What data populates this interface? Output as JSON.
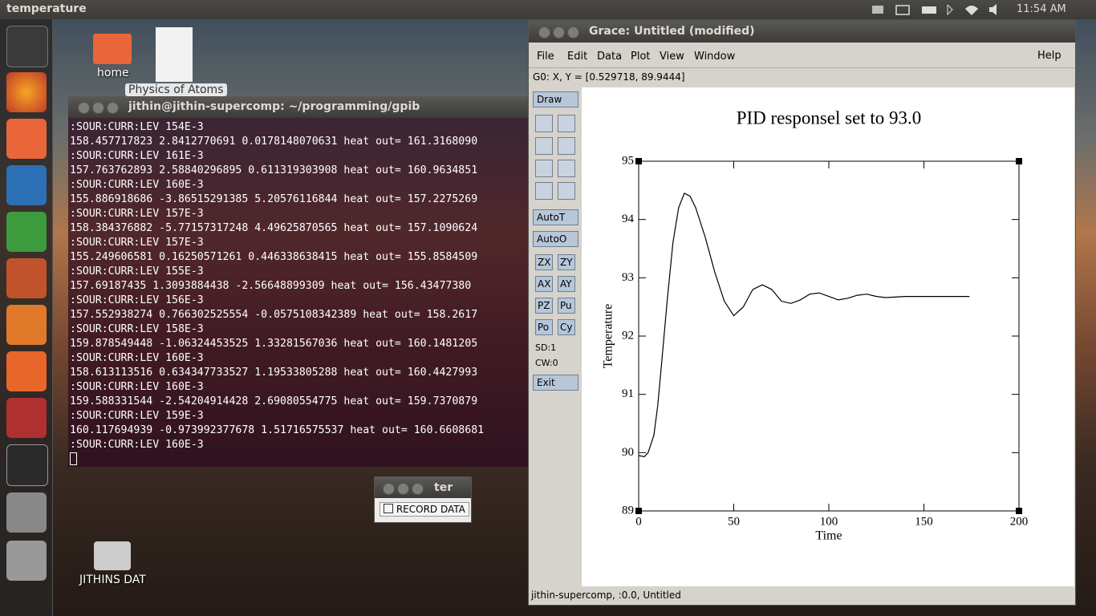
{
  "top_panel": {
    "app_title": "temperature",
    "clock": "11:54 AM"
  },
  "desktop_icons": [
    "home",
    "Physics of Atoms",
    "JITHINS DAT"
  ],
  "terminal": {
    "title": "jithin@jithin-supercomp: ~/programming/gpib",
    "lines": [
      ":SOUR:CURR:LEV 154E-3",
      "158.457717823 2.8412770691 0.0178148070631 heat out= 161.3168090",
      ":SOUR:CURR:LEV 161E-3",
      "157.763762893 2.58840296895 0.611319303908 heat out= 160.9634851",
      ":SOUR:CURR:LEV 160E-3",
      "155.886918686 -3.86515291385 5.20576116844 heat out= 157.2275269",
      ":SOUR:CURR:LEV 157E-3",
      "158.384376882 -5.77157317248 4.49625870565 heat out= 157.1090624",
      ":SOUR:CURR:LEV 157E-3",
      "155.249606581 0.16250571261 0.446338638415 heat out= 155.8584509",
      ":SOUR:CURR:LEV 155E-3",
      "157.69187435 1.3093884438 -2.56648899309 heat out= 156.43477380",
      ":SOUR:CURR:LEV 156E-3",
      "157.552938274 0.766302525554 -0.0575108342389 heat out= 158.2617",
      ":SOUR:CURR:LEV 158E-3",
      "159.878549448 -1.06324453525 1.33281567036 heat out= 160.1481205",
      ":SOUR:CURR:LEV 160E-3",
      "158.613113516 0.634347733527 1.19533805288 heat out= 160.4427993",
      ":SOUR:CURR:LEV 160E-3",
      "159.588331544 -2.54204914428 2.69080554775 heat out= 159.7370879",
      ":SOUR:CURR:LEV 159E-3",
      "160.117694939 -0.973992377678 1.51716575537 heat out= 160.6608681",
      ":SOUR:CURR:LEV 160E-3"
    ]
  },
  "record_window": {
    "title": "ter",
    "checkbox": "RECORD DATA"
  },
  "grace": {
    "title": "Grace: Untitled (modified)",
    "menus": [
      "File",
      "Edit",
      "Data",
      "Plot",
      "View",
      "Window"
    ],
    "help": "Help",
    "status": "G0: X, Y = [0.529718, 89.9444]",
    "draw": "Draw",
    "auto_buttons": [
      "AutoT",
      "AutoO"
    ],
    "pair_buttons": [
      [
        "ZX",
        "ZY"
      ],
      [
        "AX",
        "AY"
      ],
      [
        "PZ",
        "Pu"
      ],
      [
        "Po",
        "Cy"
      ]
    ],
    "indicators": [
      "SD:1",
      "CW:0"
    ],
    "exit": "Exit",
    "footer": "jithin-supercomp, :0.0, Untitled"
  },
  "chart_data": {
    "type": "line",
    "title": "PID responsel set to 93.0",
    "x_label": "Time",
    "y_label": "Temperature",
    "x": [
      0,
      3,
      5,
      8,
      10,
      12,
      15,
      18,
      21,
      24,
      27,
      30,
      35,
      40,
      45,
      50,
      55,
      60,
      65,
      70,
      75,
      80,
      85,
      90,
      95,
      100,
      105,
      110,
      115,
      120,
      125,
      130,
      140,
      150,
      160,
      170,
      174
    ],
    "values": [
      89.95,
      89.93,
      90.0,
      90.3,
      90.8,
      91.5,
      92.6,
      93.6,
      94.2,
      94.45,
      94.4,
      94.2,
      93.7,
      93.1,
      92.6,
      92.35,
      92.5,
      92.8,
      92.88,
      92.8,
      92.6,
      92.56,
      92.62,
      92.72,
      92.74,
      92.68,
      92.62,
      92.65,
      92.7,
      92.72,
      92.68,
      92.66,
      92.68,
      92.68,
      92.68,
      92.68,
      92.68
    ],
    "color": "#000000",
    "xlim": [
      0,
      200
    ],
    "ylim": [
      89,
      95
    ],
    "xticks": [
      0,
      50,
      100,
      150,
      200
    ],
    "yticks": [
      89,
      90,
      91,
      92,
      93,
      94,
      95
    ]
  }
}
